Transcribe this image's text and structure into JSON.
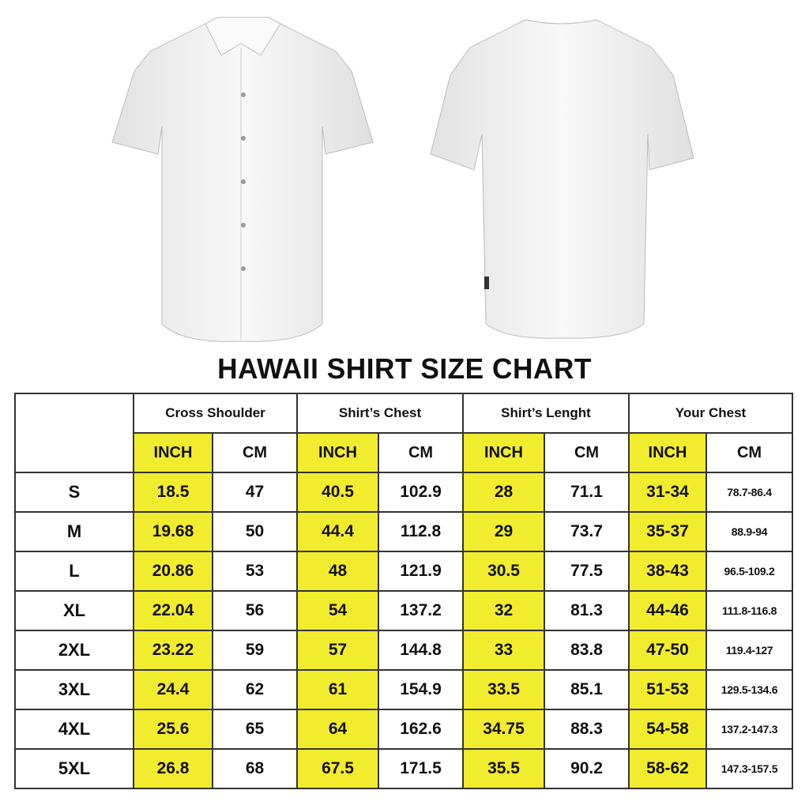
{
  "title": "HAWAII SHIRT SIZE CHART",
  "colors": {
    "highlight": "#f2ec2e",
    "border": "#333333",
    "shirt": "#f4f4f4"
  },
  "images": {
    "front": "white short-sleeve button shirt front view",
    "back": "white short-sleeve shirt back view"
  },
  "groups": [
    "Cross Shoulder",
    "Shirt’s Chest",
    "Shirt’s Lenght",
    "Your Chest"
  ],
  "units": [
    "INCH",
    "CM"
  ],
  "rows": [
    {
      "size": "S",
      "values": [
        "18.5",
        "47",
        "40.5",
        "102.9",
        "28",
        "71.1",
        "31-34",
        "78.7-86.4"
      ]
    },
    {
      "size": "M",
      "values": [
        "19.68",
        "50",
        "44.4",
        "112.8",
        "29",
        "73.7",
        "35-37",
        "88.9-94"
      ]
    },
    {
      "size": "L",
      "values": [
        "20.86",
        "53",
        "48",
        "121.9",
        "30.5",
        "77.5",
        "38-43",
        "96.5-109.2"
      ]
    },
    {
      "size": "XL",
      "values": [
        "22.04",
        "56",
        "54",
        "137.2",
        "32",
        "81.3",
        "44-46",
        "111.8-116.8"
      ]
    },
    {
      "size": "2XL",
      "values": [
        "23.22",
        "59",
        "57",
        "144.8",
        "33",
        "83.8",
        "47-50",
        "119.4-127"
      ]
    },
    {
      "size": "3XL",
      "values": [
        "24.4",
        "62",
        "61",
        "154.9",
        "33.5",
        "85.1",
        "51-53",
        "129.5-134.6"
      ]
    },
    {
      "size": "4XL",
      "values": [
        "25.6",
        "65",
        "64",
        "162.6",
        "34.75",
        "88.3",
        "54-58",
        "137.2-147.3"
      ]
    },
    {
      "size": "5XL",
      "values": [
        "26.8",
        "68",
        "67.5",
        "171.5",
        "35.5",
        "90.2",
        "58-62",
        "147.3-157.5"
      ]
    }
  ]
}
